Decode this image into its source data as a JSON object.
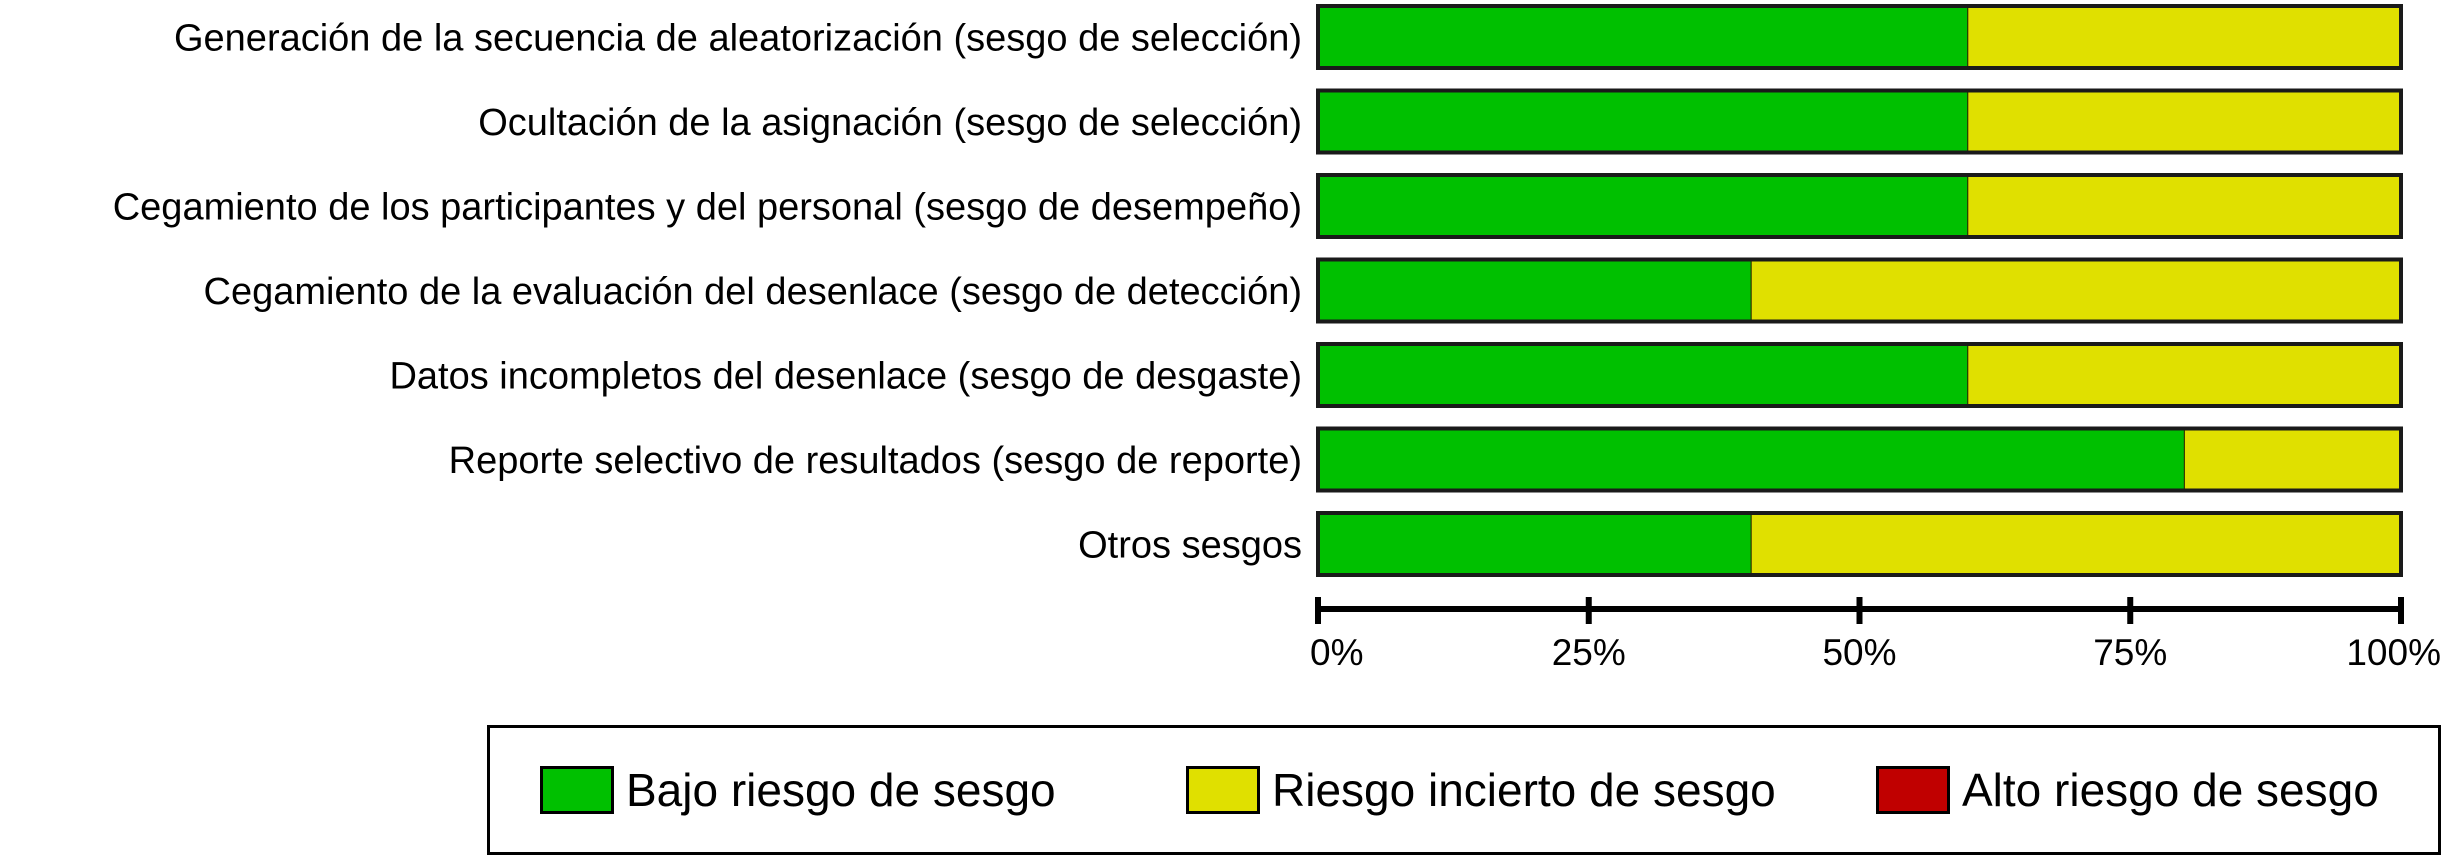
{
  "chart_data": {
    "type": "bar",
    "orientation": "horizontal",
    "stacked": true,
    "percent": true,
    "categories": [
      "Generación de la secuencia de aleatorización (sesgo de selección)",
      "Ocultación de la asignación (sesgo de selección)",
      "Cegamiento de los participantes y del personal (sesgo de desempeño)",
      "Cegamiento de la evaluación del desenlace (sesgo de detección)",
      "Datos incompletos del desenlace (sesgo de desgaste)",
      "Reporte selectivo de resultados (sesgo de reporte)",
      "Otros sesgos"
    ],
    "series": [
      {
        "name": "Bajo riesgo de sesgo",
        "color": "#00c000",
        "values": [
          60,
          60,
          60,
          40,
          60,
          80,
          40
        ]
      },
      {
        "name": "Riesgo incierto de sesgo",
        "color": "#e0e000",
        "values": [
          40,
          40,
          40,
          60,
          40,
          20,
          60
        ]
      },
      {
        "name": "Alto riesgo de sesgo",
        "color": "#c00000",
        "values": [
          0,
          0,
          0,
          0,
          0,
          0,
          0
        ]
      }
    ],
    "x_ticks": [
      0,
      25,
      50,
      75,
      100
    ],
    "x_tick_labels": [
      "0%",
      "25%",
      "50%",
      "75%",
      "100%"
    ],
    "xlim": [
      0,
      100
    ],
    "grid": false,
    "legend_position": "bottom"
  }
}
